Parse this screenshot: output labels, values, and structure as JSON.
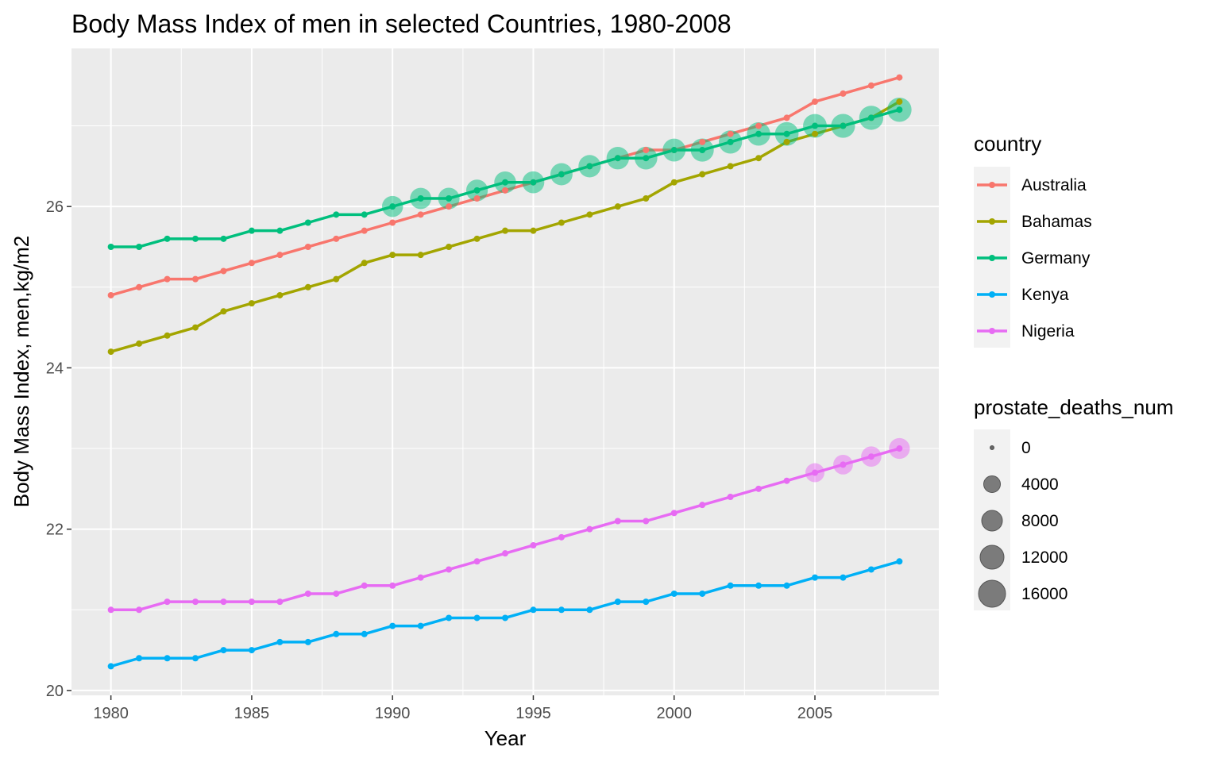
{
  "chart_data": {
    "type": "line",
    "title": "Body Mass Index of men in selected Countries, 1980-2008",
    "xlabel": "Year",
    "ylabel": "Body Mass Index, men,kg/m2",
    "xlim": [
      1978.6,
      2009.4
    ],
    "ylim": [
      19.94,
      27.96
    ],
    "x_ticks": [
      1980,
      1985,
      1990,
      1995,
      2000,
      2005
    ],
    "y_ticks": [
      20,
      22,
      24,
      26
    ],
    "x_tick_labels": [
      "1980",
      "1985",
      "1990",
      "1995",
      "2000",
      "2005"
    ],
    "y_tick_labels": [
      "20",
      "22",
      "24",
      "26"
    ],
    "grid": true,
    "x": [
      1980,
      1981,
      1982,
      1983,
      1984,
      1985,
      1986,
      1987,
      1988,
      1989,
      1990,
      1991,
      1992,
      1993,
      1994,
      1995,
      1996,
      1997,
      1998,
      1999,
      2000,
      2001,
      2002,
      2003,
      2004,
      2005,
      2006,
      2007,
      2008
    ],
    "legend": {
      "position": "right",
      "color_title": "country",
      "size_title": "prostate_deaths_num",
      "size_breaks": [
        0,
        4000,
        8000,
        12000,
        16000
      ],
      "size_labels": [
        "0",
        "4000",
        "8000",
        "12000",
        "16000"
      ]
    },
    "series": [
      {
        "name": "Australia",
        "color": "#F8766D",
        "values": [
          24.9,
          25.0,
          25.1,
          25.1,
          25.2,
          25.3,
          25.4,
          25.5,
          25.6,
          25.7,
          25.8,
          25.9,
          26.0,
          26.1,
          26.2,
          26.3,
          26.4,
          26.5,
          26.6,
          26.7,
          26.7,
          26.8,
          26.9,
          27.0,
          27.1,
          27.3,
          27.4,
          27.5,
          27.6
        ],
        "deaths": null
      },
      {
        "name": "Bahamas",
        "color": "#A3A500",
        "values": [
          24.2,
          24.3,
          24.4,
          24.5,
          24.7,
          24.8,
          24.9,
          25.0,
          25.1,
          25.3,
          25.4,
          25.4,
          25.5,
          25.6,
          25.7,
          25.7,
          25.8,
          25.9,
          26.0,
          26.1,
          26.3,
          26.4,
          26.5,
          26.6,
          26.8,
          26.9,
          27.0,
          27.1,
          27.3
        ],
        "deaths": null
      },
      {
        "name": "Germany",
        "color": "#00BF7D",
        "values": [
          25.5,
          25.5,
          25.6,
          25.6,
          25.6,
          25.7,
          25.7,
          25.8,
          25.9,
          25.9,
          26.0,
          26.1,
          26.1,
          26.2,
          26.3,
          26.3,
          26.4,
          26.5,
          26.6,
          26.6,
          26.7,
          26.7,
          26.8,
          26.9,
          26.9,
          27.0,
          27.0,
          27.1,
          27.2
        ],
        "deaths": [
          null,
          null,
          null,
          null,
          null,
          null,
          null,
          null,
          null,
          null,
          11000,
          11200,
          11400,
          11600,
          11800,
          12000,
          12200,
          12400,
          12600,
          12800,
          13000,
          13200,
          13400,
          13600,
          13800,
          14000,
          14200,
          14400,
          14600
        ]
      },
      {
        "name": "Kenya",
        "color": "#00B0F6",
        "values": [
          20.3,
          20.4,
          20.4,
          20.4,
          20.5,
          20.5,
          20.6,
          20.6,
          20.7,
          20.7,
          20.8,
          20.8,
          20.9,
          20.9,
          20.9,
          21.0,
          21.0,
          21.0,
          21.1,
          21.1,
          21.2,
          21.2,
          21.3,
          21.3,
          21.3,
          21.4,
          21.4,
          21.5,
          21.6
        ],
        "deaths": null
      },
      {
        "name": "Nigeria",
        "color": "#E76BF3",
        "values": [
          21.0,
          21.0,
          21.1,
          21.1,
          21.1,
          21.1,
          21.1,
          21.2,
          21.2,
          21.3,
          21.3,
          21.4,
          21.5,
          21.6,
          21.7,
          21.8,
          21.9,
          22.0,
          22.1,
          22.1,
          22.2,
          22.3,
          22.4,
          22.5,
          22.6,
          22.7,
          22.8,
          22.9,
          23.0
        ],
        "deaths": [
          null,
          null,
          null,
          null,
          null,
          null,
          null,
          null,
          null,
          null,
          null,
          null,
          null,
          null,
          null,
          null,
          null,
          null,
          null,
          null,
          null,
          null,
          null,
          null,
          null,
          9000,
          9600,
          10200,
          10800
        ]
      }
    ]
  }
}
